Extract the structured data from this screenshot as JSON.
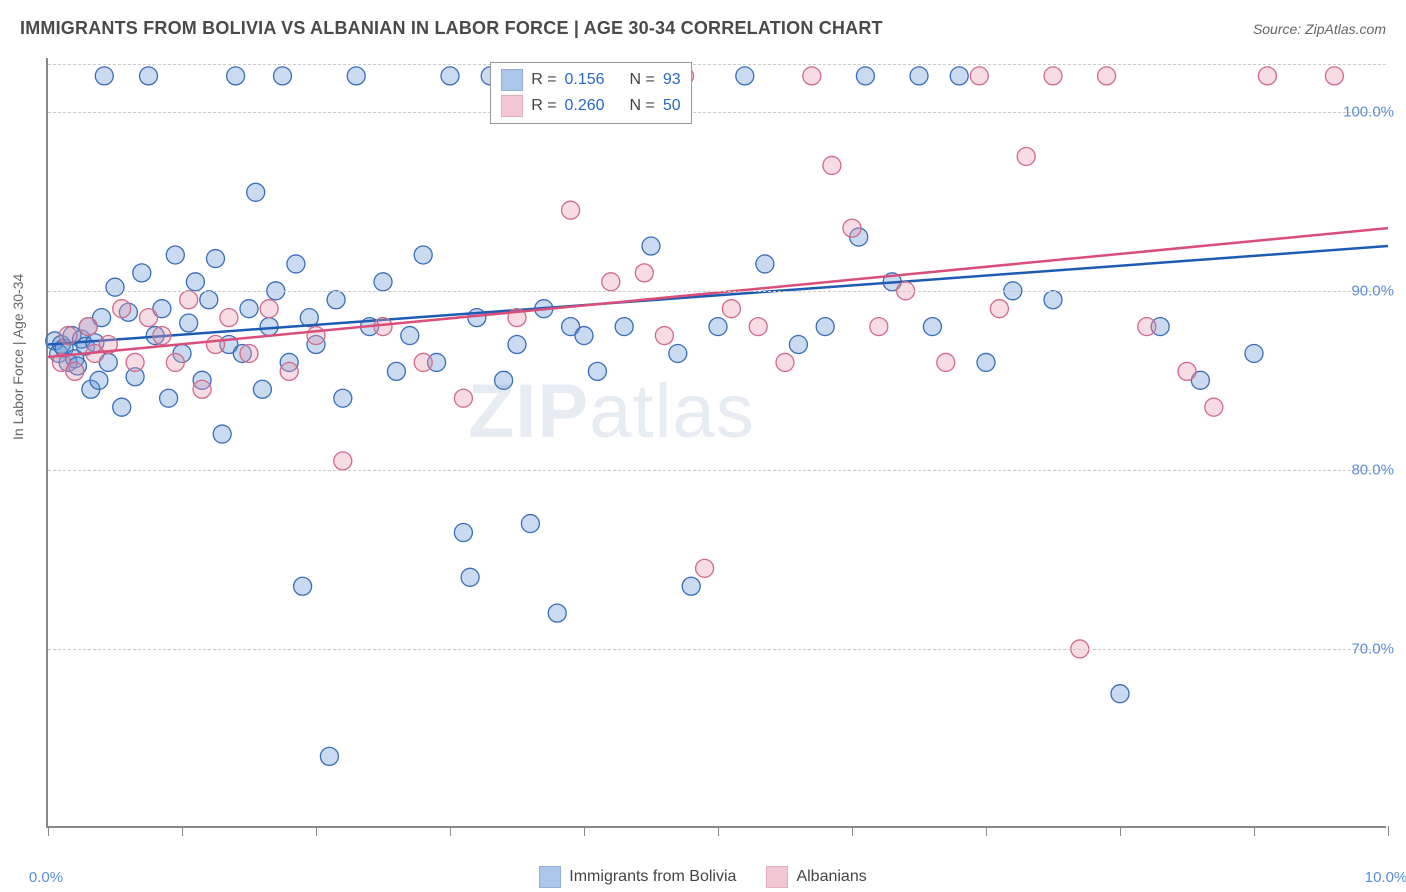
{
  "header": {
    "title": "IMMIGRANTS FROM BOLIVIA VS ALBANIAN IN LABOR FORCE | AGE 30-34 CORRELATION CHART",
    "source": "Source: ZipAtlas.com"
  },
  "chart": {
    "type": "scatter",
    "ylabel": "In Labor Force | Age 30-34",
    "xlim": [
      0,
      10
    ],
    "ylim": [
      60,
      103
    ],
    "xtick_labels": {
      "0": "0.0%",
      "10": "10.0%"
    },
    "xtick_minor_step": 1,
    "ytick_labels": {
      "70": "70.0%",
      "80": "80.0%",
      "90": "90.0%",
      "100": "100.0%"
    },
    "grid_color": "#cccccc",
    "axis_color": "#888888",
    "background_color": "#ffffff",
    "marker_radius": 9,
    "marker_fill_opacity": 0.35,
    "marker_stroke_width": 1.3,
    "line_width": 2.5,
    "watermark": "ZIPatlas",
    "series": [
      {
        "name": "Immigrants from Bolivia",
        "color": "#6699d8",
        "stroke": "#3a6db8",
        "line_color": "#1e5cb3",
        "R": "0.156",
        "N": "93",
        "trend": {
          "x1": 0,
          "y1": 87.0,
          "x2": 10,
          "y2": 92.5
        },
        "points": [
          [
            0.05,
            87.2
          ],
          [
            0.08,
            86.5
          ],
          [
            0.1,
            87.0
          ],
          [
            0.12,
            86.8
          ],
          [
            0.15,
            86.0
          ],
          [
            0.18,
            87.5
          ],
          [
            0.2,
            86.2
          ],
          [
            0.22,
            85.8
          ],
          [
            0.25,
            87.3
          ],
          [
            0.28,
            86.9
          ],
          [
            0.3,
            88.0
          ],
          [
            0.32,
            84.5
          ],
          [
            0.35,
            87.1
          ],
          [
            0.38,
            85.0
          ],
          [
            0.4,
            88.5
          ],
          [
            0.42,
            102.0
          ],
          [
            0.45,
            86.0
          ],
          [
            0.5,
            90.2
          ],
          [
            0.55,
            83.5
          ],
          [
            0.6,
            88.8
          ],
          [
            0.65,
            85.2
          ],
          [
            0.7,
            91.0
          ],
          [
            0.75,
            102.0
          ],
          [
            0.8,
            87.5
          ],
          [
            0.85,
            89.0
          ],
          [
            0.9,
            84.0
          ],
          [
            0.95,
            92.0
          ],
          [
            1.0,
            86.5
          ],
          [
            1.05,
            88.2
          ],
          [
            1.1,
            90.5
          ],
          [
            1.15,
            85.0
          ],
          [
            1.2,
            89.5
          ],
          [
            1.25,
            91.8
          ],
          [
            1.3,
            82.0
          ],
          [
            1.35,
            87.0
          ],
          [
            1.4,
            102.0
          ],
          [
            1.45,
            86.5
          ],
          [
            1.5,
            89.0
          ],
          [
            1.55,
            95.5
          ],
          [
            1.6,
            84.5
          ],
          [
            1.65,
            88.0
          ],
          [
            1.7,
            90.0
          ],
          [
            1.75,
            102.0
          ],
          [
            1.8,
            86.0
          ],
          [
            1.85,
            91.5
          ],
          [
            1.9,
            73.5
          ],
          [
            1.95,
            88.5
          ],
          [
            2.0,
            87.0
          ],
          [
            2.1,
            64.0
          ],
          [
            2.15,
            89.5
          ],
          [
            2.2,
            84.0
          ],
          [
            2.3,
            102.0
          ],
          [
            2.4,
            88.0
          ],
          [
            2.5,
            90.5
          ],
          [
            2.6,
            85.5
          ],
          [
            2.7,
            87.5
          ],
          [
            2.8,
            92.0
          ],
          [
            2.9,
            86.0
          ],
          [
            3.0,
            102.0
          ],
          [
            3.1,
            76.5
          ],
          [
            3.15,
            74.0
          ],
          [
            3.2,
            88.5
          ],
          [
            3.3,
            102.0
          ],
          [
            3.4,
            85.0
          ],
          [
            3.5,
            87.0
          ],
          [
            3.6,
            77.0
          ],
          [
            3.7,
            89.0
          ],
          [
            3.8,
            72.0
          ],
          [
            3.9,
            88.0
          ],
          [
            4.0,
            87.5
          ],
          [
            4.1,
            85.5
          ],
          [
            4.3,
            88.0
          ],
          [
            4.5,
            92.5
          ],
          [
            4.7,
            86.5
          ],
          [
            4.8,
            73.5
          ],
          [
            5.0,
            88.0
          ],
          [
            5.2,
            102.0
          ],
          [
            5.35,
            91.5
          ],
          [
            5.6,
            87.0
          ],
          [
            5.8,
            88.0
          ],
          [
            6.05,
            93.0
          ],
          [
            6.1,
            102.0
          ],
          [
            6.3,
            90.5
          ],
          [
            6.5,
            102.0
          ],
          [
            6.6,
            88.0
          ],
          [
            6.8,
            102.0
          ],
          [
            7.0,
            86.0
          ],
          [
            7.2,
            90.0
          ],
          [
            7.5,
            89.5
          ],
          [
            8.0,
            67.5
          ],
          [
            8.3,
            88.0
          ],
          [
            8.6,
            85.0
          ],
          [
            9.0,
            86.5
          ]
        ]
      },
      {
        "name": "Albanians",
        "color": "#e89bb0",
        "stroke": "#d16a8a",
        "line_color": "#d94f7a",
        "R": "0.260",
        "N": "50",
        "trend": {
          "x1": 0,
          "y1": 86.3,
          "x2": 10,
          "y2": 93.5
        },
        "points": [
          [
            0.1,
            86.0
          ],
          [
            0.15,
            87.5
          ],
          [
            0.2,
            85.5
          ],
          [
            0.3,
            88.0
          ],
          [
            0.35,
            86.5
          ],
          [
            0.45,
            87.0
          ],
          [
            0.55,
            89.0
          ],
          [
            0.65,
            86.0
          ],
          [
            0.75,
            88.5
          ],
          [
            0.85,
            87.5
          ],
          [
            0.95,
            86.0
          ],
          [
            1.05,
            89.5
          ],
          [
            1.15,
            84.5
          ],
          [
            1.25,
            87.0
          ],
          [
            1.35,
            88.5
          ],
          [
            1.5,
            86.5
          ],
          [
            1.65,
            89.0
          ],
          [
            1.8,
            85.5
          ],
          [
            2.0,
            87.5
          ],
          [
            2.2,
            80.5
          ],
          [
            2.5,
            88.0
          ],
          [
            2.8,
            86.0
          ],
          [
            3.1,
            84.0
          ],
          [
            3.5,
            88.5
          ],
          [
            3.9,
            94.5
          ],
          [
            4.2,
            90.5
          ],
          [
            4.45,
            91.0
          ],
          [
            4.6,
            87.5
          ],
          [
            4.75,
            102.0
          ],
          [
            4.9,
            74.5
          ],
          [
            5.1,
            89.0
          ],
          [
            5.3,
            88.0
          ],
          [
            5.5,
            86.0
          ],
          [
            5.7,
            102.0
          ],
          [
            5.85,
            97.0
          ],
          [
            6.0,
            93.5
          ],
          [
            6.2,
            88.0
          ],
          [
            6.4,
            90.0
          ],
          [
            6.7,
            86.0
          ],
          [
            6.95,
            102.0
          ],
          [
            7.1,
            89.0
          ],
          [
            7.3,
            97.5
          ],
          [
            7.5,
            102.0
          ],
          [
            7.7,
            70.0
          ],
          [
            7.9,
            102.0
          ],
          [
            8.2,
            88.0
          ],
          [
            8.5,
            85.5
          ],
          [
            8.7,
            83.5
          ],
          [
            9.1,
            102.0
          ],
          [
            9.6,
            102.0
          ]
        ]
      }
    ],
    "legend_top": {
      "R_label": "R =",
      "N_label": "N ="
    },
    "legend_bottom": [
      {
        "color": "#6699d8",
        "stroke": "#3a6db8",
        "label": "Immigrants from Bolivia"
      },
      {
        "color": "#e89bb0",
        "stroke": "#d16a8a",
        "label": "Albanians"
      }
    ]
  }
}
